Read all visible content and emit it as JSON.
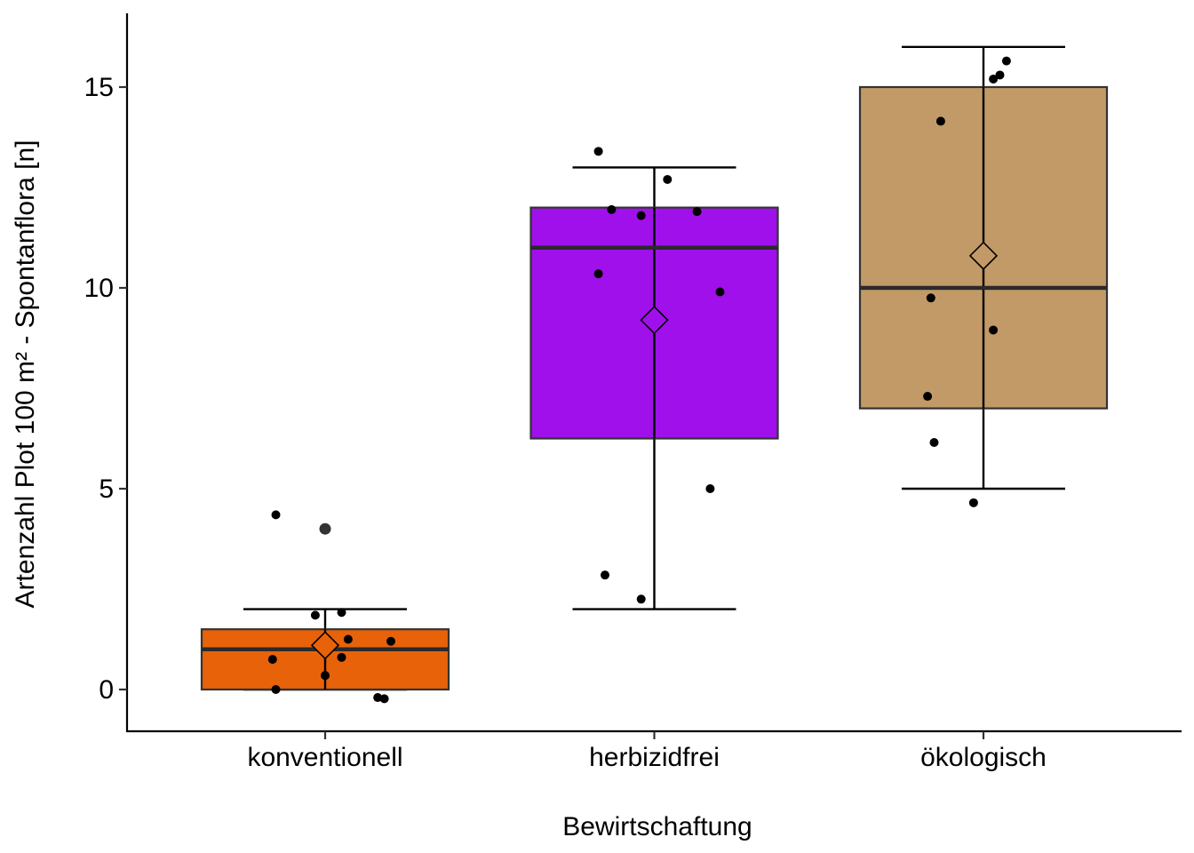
{
  "chart_data": {
    "type": "box",
    "title": "",
    "xlabel": "Bewirtschaftung",
    "ylabel": "Artenzahl Plot 100 m² - Spontanflora [n]",
    "ylim": [
      -1.05,
      16.8
    ],
    "yticks": [
      0,
      5,
      10,
      15
    ],
    "ytick_labels": [
      "0",
      "5",
      "10",
      "15"
    ],
    "grid": false,
    "legend": "none",
    "categories": [
      "konventionell",
      "herbizidfrei",
      "ökologisch"
    ],
    "boxes": [
      {
        "category": "konventionell",
        "color": "#E8620A",
        "min": 0,
        "q1": 0,
        "median": 1,
        "q3": 1.5,
        "max": 2,
        "mean": 1.1,
        "outliers": [
          4
        ],
        "points": [
          {
            "x": -0.15,
            "y": 4.35
          },
          {
            "x": -0.03,
            "y": 1.85
          },
          {
            "x": 0.05,
            "y": 1.92
          },
          {
            "x": -0.16,
            "y": 0.75
          },
          {
            "x": 0.07,
            "y": 1.25
          },
          {
            "x": 0.2,
            "y": 1.2
          },
          {
            "x": 0.05,
            "y": 0.8
          },
          {
            "x": 0.0,
            "y": 0.35
          },
          {
            "x": -0.15,
            "y": 0.0
          },
          {
            "x": 0.16,
            "y": -0.2
          },
          {
            "x": 0.18,
            "y": -0.23
          }
        ]
      },
      {
        "category": "herbizidfrei",
        "color": "#A010EA",
        "min": 2,
        "q1": 6.25,
        "median": 11,
        "q3": 12,
        "max": 13,
        "mean": 9.2,
        "outliers": [],
        "points": [
          {
            "x": -0.17,
            "y": 13.4
          },
          {
            "x": 0.04,
            "y": 12.7
          },
          {
            "x": -0.13,
            "y": 11.95
          },
          {
            "x": -0.04,
            "y": 11.8
          },
          {
            "x": 0.13,
            "y": 11.9
          },
          {
            "x": -0.17,
            "y": 10.35
          },
          {
            "x": 0.2,
            "y": 9.9
          },
          {
            "x": 0.17,
            "y": 5.0
          },
          {
            "x": -0.15,
            "y": 2.85
          },
          {
            "x": -0.04,
            "y": 2.25
          }
        ]
      },
      {
        "category": "ökologisch",
        "color": "#C29A68",
        "min": 5,
        "q1": 7,
        "median": 10,
        "q3": 15,
        "max": 16,
        "mean": 10.8,
        "outliers": [],
        "points": [
          {
            "x": 0.07,
            "y": 15.65
          },
          {
            "x": 0.05,
            "y": 15.3
          },
          {
            "x": 0.03,
            "y": 15.2
          },
          {
            "x": -0.13,
            "y": 14.15
          },
          {
            "x": -0.16,
            "y": 9.75
          },
          {
            "x": 0.03,
            "y": 8.95
          },
          {
            "x": -0.17,
            "y": 7.3
          },
          {
            "x": -0.15,
            "y": 6.15
          },
          {
            "x": -0.03,
            "y": 4.65
          }
        ]
      }
    ]
  }
}
